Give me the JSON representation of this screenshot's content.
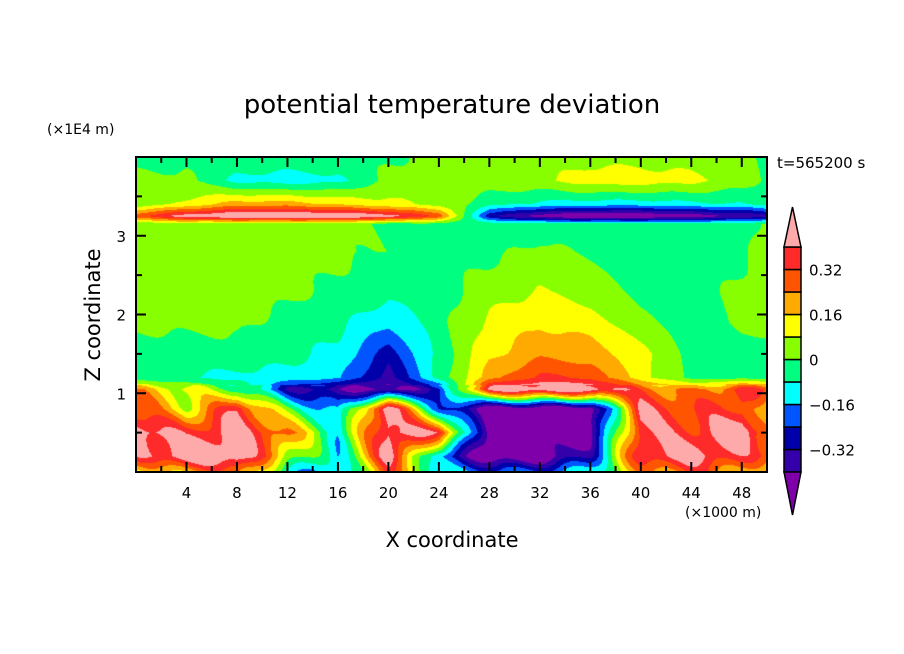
{
  "chart_data": {
    "type": "heatmap",
    "title": "potential temperature deviation",
    "xlabel": "X coordinate",
    "ylabel": "Z coordinate",
    "x_unit_label": "(×1000 m)",
    "y_unit_label": "(×1E4 m)",
    "time_label": "t=565200 s",
    "xlim": [
      0,
      50
    ],
    "ylim": [
      0,
      4
    ],
    "x_ticks": [
      4,
      8,
      12,
      16,
      20,
      24,
      28,
      32,
      36,
      40,
      44,
      48
    ],
    "x_tick_labels": [
      "4",
      "8",
      "12",
      "16",
      "20",
      "24",
      "28",
      "32",
      "36",
      "40",
      "44",
      "48"
    ],
    "y_ticks": [
      1,
      2,
      3
    ],
    "y_tick_labels": [
      "1",
      "2",
      "3"
    ],
    "levels": [
      -0.4,
      -0.32,
      -0.24,
      -0.16,
      -0.08,
      0,
      0.08,
      0.16,
      0.24,
      0.32,
      0.4
    ],
    "colorbar_labels": [
      {
        "value": 0.32,
        "text": "0.32"
      },
      {
        "value": 0.16,
        "text": "0.16"
      },
      {
        "value": 0,
        "text": "0"
      },
      {
        "value": -0.16,
        "text": "−0.16"
      },
      {
        "value": -0.32,
        "text": "−0.32"
      }
    ],
    "colors": [
      "#7f00aa",
      "#3300aa",
      "#0000aa",
      "#0055ff",
      "#00ffff",
      "#00ff80",
      "#88ff00",
      "#ffff00",
      "#ffaa00",
      "#ff5500",
      "#ff2a2a",
      "#ffaaaa"
    ],
    "grid_x": [
      0,
      4,
      8,
      12,
      16,
      20,
      24,
      28,
      32,
      36,
      40,
      44,
      48,
      50
    ],
    "grid_z": [
      4.0,
      3.7,
      3.4,
      3.25,
      3.15,
      2.8,
      2.3,
      1.9,
      1.5,
      1.2,
      1.05,
      0.8,
      0.5,
      0.2,
      0.0
    ],
    "values": [
      [
        -0.03,
        -0.03,
        -0.02,
        -0.02,
        -0.02,
        -0.01,
        0.02,
        0.04,
        0.05,
        0.05,
        0.05,
        0.04,
        0.04,
        -0.02
      ],
      [
        0.02,
        0.02,
        -0.1,
        -0.12,
        -0.1,
        0.02,
        0.04,
        0.05,
        0.06,
        0.12,
        0.12,
        0.1,
        0.04,
        -0.02
      ],
      [
        0.02,
        0.1,
        0.2,
        0.2,
        0.15,
        0.1,
        0.05,
        -0.05,
        -0.1,
        -0.12,
        -0.12,
        -0.1,
        -0.08,
        -0.05
      ],
      [
        0.3,
        0.45,
        0.5,
        0.5,
        0.5,
        0.45,
        0.3,
        -0.3,
        -0.45,
        -0.5,
        -0.5,
        -0.45,
        -0.4,
        -0.35
      ],
      [
        0.03,
        0.03,
        0.03,
        0.03,
        0.02,
        -0.02,
        -0.03,
        -0.04,
        -0.04,
        -0.04,
        -0.04,
        -0.04,
        -0.03,
        0.02
      ],
      [
        0.03,
        0.03,
        0.03,
        0.03,
        0.02,
        -0.01,
        -0.03,
        -0.02,
        0.02,
        -0.02,
        -0.04,
        -0.04,
        -0.02,
        0.03
      ],
      [
        0.03,
        0.03,
        0.03,
        0.02,
        -0.02,
        -0.05,
        -0.03,
        0.04,
        0.08,
        0.05,
        -0.02,
        -0.04,
        0.02,
        0.03
      ],
      [
        0.02,
        0.02,
        0.02,
        -0.03,
        -0.06,
        -0.14,
        -0.03,
        0.1,
        0.15,
        0.12,
        0.03,
        -0.03,
        0.02,
        0.02
      ],
      [
        -0.04,
        -0.04,
        -0.03,
        -0.06,
        -0.1,
        -0.28,
        -0.05,
        0.14,
        0.22,
        0.2,
        0.1,
        -0.02,
        -0.02,
        -0.04
      ],
      [
        -0.06,
        -0.08,
        -0.1,
        -0.1,
        -0.14,
        -0.36,
        -0.05,
        0.2,
        0.34,
        0.3,
        0.12,
        -0.03,
        -0.04,
        -0.04
      ],
      [
        0.2,
        0.1,
        0.0,
        -0.3,
        -0.4,
        -0.45,
        -0.3,
        0.45,
        0.5,
        0.5,
        0.3,
        0.2,
        0.35,
        0.3
      ],
      [
        0.3,
        0.1,
        0.4,
        0.0,
        -0.2,
        0.5,
        -0.2,
        -0.5,
        -0.5,
        -0.5,
        0.4,
        0.3,
        0.35,
        0.1
      ],
      [
        0.5,
        0.35,
        0.45,
        0.25,
        -0.1,
        0.45,
        0.4,
        -0.5,
        -0.5,
        -0.45,
        0.4,
        0.35,
        0.5,
        0.3
      ],
      [
        0.35,
        0.5,
        0.5,
        0.1,
        -0.15,
        0.45,
        -0.2,
        -0.5,
        -0.5,
        -0.3,
        0.4,
        0.45,
        0.35,
        0.3
      ],
      [
        0.1,
        0.2,
        0.3,
        -0.1,
        -0.2,
        0.3,
        -0.1,
        -0.2,
        -0.2,
        -0.1,
        0.2,
        0.3,
        0.2,
        0.1
      ]
    ]
  }
}
